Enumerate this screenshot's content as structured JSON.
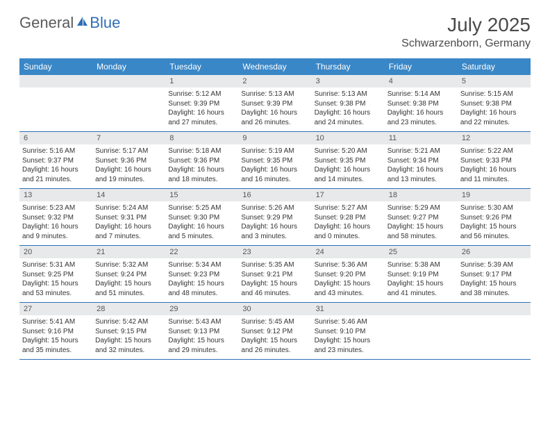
{
  "logo": {
    "text1": "General",
    "text2": "Blue"
  },
  "title": {
    "month": "July 2025",
    "location": "Schwarzenborn, Germany"
  },
  "colors": {
    "header_bg": "#3a87c7",
    "daynum_bg": "#e8e9ea",
    "week_border": "#2e6fb5",
    "text": "#333333",
    "title_text": "#4a4a4a"
  },
  "weekdays": [
    "Sunday",
    "Monday",
    "Tuesday",
    "Wednesday",
    "Thursday",
    "Friday",
    "Saturday"
  ],
  "weeks": [
    [
      {
        "n": "",
        "sr": "",
        "ss": "",
        "dl": ""
      },
      {
        "n": "",
        "sr": "",
        "ss": "",
        "dl": ""
      },
      {
        "n": "1",
        "sr": "5:12 AM",
        "ss": "9:39 PM",
        "dl": "16 hours and 27 minutes."
      },
      {
        "n": "2",
        "sr": "5:13 AM",
        "ss": "9:39 PM",
        "dl": "16 hours and 26 minutes."
      },
      {
        "n": "3",
        "sr": "5:13 AM",
        "ss": "9:38 PM",
        "dl": "16 hours and 24 minutes."
      },
      {
        "n": "4",
        "sr": "5:14 AM",
        "ss": "9:38 PM",
        "dl": "16 hours and 23 minutes."
      },
      {
        "n": "5",
        "sr": "5:15 AM",
        "ss": "9:38 PM",
        "dl": "16 hours and 22 minutes."
      }
    ],
    [
      {
        "n": "6",
        "sr": "5:16 AM",
        "ss": "9:37 PM",
        "dl": "16 hours and 21 minutes."
      },
      {
        "n": "7",
        "sr": "5:17 AM",
        "ss": "9:36 PM",
        "dl": "16 hours and 19 minutes."
      },
      {
        "n": "8",
        "sr": "5:18 AM",
        "ss": "9:36 PM",
        "dl": "16 hours and 18 minutes."
      },
      {
        "n": "9",
        "sr": "5:19 AM",
        "ss": "9:35 PM",
        "dl": "16 hours and 16 minutes."
      },
      {
        "n": "10",
        "sr": "5:20 AM",
        "ss": "9:35 PM",
        "dl": "16 hours and 14 minutes."
      },
      {
        "n": "11",
        "sr": "5:21 AM",
        "ss": "9:34 PM",
        "dl": "16 hours and 13 minutes."
      },
      {
        "n": "12",
        "sr": "5:22 AM",
        "ss": "9:33 PM",
        "dl": "16 hours and 11 minutes."
      }
    ],
    [
      {
        "n": "13",
        "sr": "5:23 AM",
        "ss": "9:32 PM",
        "dl": "16 hours and 9 minutes."
      },
      {
        "n": "14",
        "sr": "5:24 AM",
        "ss": "9:31 PM",
        "dl": "16 hours and 7 minutes."
      },
      {
        "n": "15",
        "sr": "5:25 AM",
        "ss": "9:30 PM",
        "dl": "16 hours and 5 minutes."
      },
      {
        "n": "16",
        "sr": "5:26 AM",
        "ss": "9:29 PM",
        "dl": "16 hours and 3 minutes."
      },
      {
        "n": "17",
        "sr": "5:27 AM",
        "ss": "9:28 PM",
        "dl": "16 hours and 0 minutes."
      },
      {
        "n": "18",
        "sr": "5:29 AM",
        "ss": "9:27 PM",
        "dl": "15 hours and 58 minutes."
      },
      {
        "n": "19",
        "sr": "5:30 AM",
        "ss": "9:26 PM",
        "dl": "15 hours and 56 minutes."
      }
    ],
    [
      {
        "n": "20",
        "sr": "5:31 AM",
        "ss": "9:25 PM",
        "dl": "15 hours and 53 minutes."
      },
      {
        "n": "21",
        "sr": "5:32 AM",
        "ss": "9:24 PM",
        "dl": "15 hours and 51 minutes."
      },
      {
        "n": "22",
        "sr": "5:34 AM",
        "ss": "9:23 PM",
        "dl": "15 hours and 48 minutes."
      },
      {
        "n": "23",
        "sr": "5:35 AM",
        "ss": "9:21 PM",
        "dl": "15 hours and 46 minutes."
      },
      {
        "n": "24",
        "sr": "5:36 AM",
        "ss": "9:20 PM",
        "dl": "15 hours and 43 minutes."
      },
      {
        "n": "25",
        "sr": "5:38 AM",
        "ss": "9:19 PM",
        "dl": "15 hours and 41 minutes."
      },
      {
        "n": "26",
        "sr": "5:39 AM",
        "ss": "9:17 PM",
        "dl": "15 hours and 38 minutes."
      }
    ],
    [
      {
        "n": "27",
        "sr": "5:41 AM",
        "ss": "9:16 PM",
        "dl": "15 hours and 35 minutes."
      },
      {
        "n": "28",
        "sr": "5:42 AM",
        "ss": "9:15 PM",
        "dl": "15 hours and 32 minutes."
      },
      {
        "n": "29",
        "sr": "5:43 AM",
        "ss": "9:13 PM",
        "dl": "15 hours and 29 minutes."
      },
      {
        "n": "30",
        "sr": "5:45 AM",
        "ss": "9:12 PM",
        "dl": "15 hours and 26 minutes."
      },
      {
        "n": "31",
        "sr": "5:46 AM",
        "ss": "9:10 PM",
        "dl": "15 hours and 23 minutes."
      },
      {
        "n": "",
        "sr": "",
        "ss": "",
        "dl": ""
      },
      {
        "n": "",
        "sr": "",
        "ss": "",
        "dl": ""
      }
    ]
  ],
  "labels": {
    "sunrise": "Sunrise: ",
    "sunset": "Sunset: ",
    "daylight": "Daylight: "
  }
}
